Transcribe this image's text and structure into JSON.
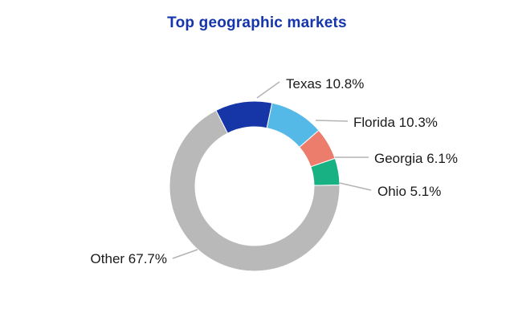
{
  "chart_data": {
    "type": "pie",
    "subtype": "donut",
    "title": "Top geographic markets",
    "title_color": "#1535ad",
    "categories": [
      "Texas",
      "Florida",
      "Georgia",
      "Ohio",
      "Other"
    ],
    "values": [
      10.8,
      10.3,
      6.1,
      5.1,
      67.7
    ],
    "colors": [
      "#1636a8",
      "#54b9e6",
      "#ec7d6d",
      "#17b183",
      "#b9b9b9"
    ],
    "labels": [
      "Texas 10.8%",
      "Florida 10.3%",
      "Georgia 6.1%",
      "Ohio 5.1%",
      "Other 67.7%"
    ],
    "leader_line_color": "#b3b3b3",
    "start_angle_deg": -27,
    "direction": "clockwise",
    "inner_radius_ratio": 0.7,
    "legend_position": "none",
    "background": "#ffffff"
  }
}
